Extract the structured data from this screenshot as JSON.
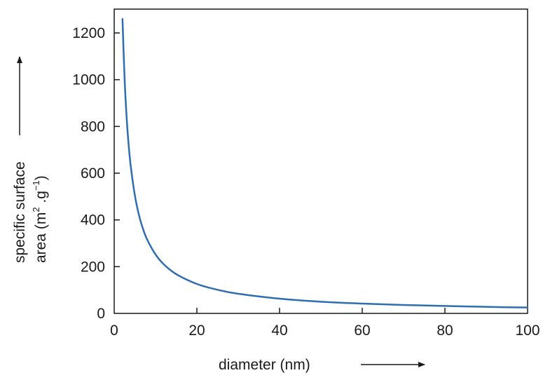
{
  "chart_data": {
    "type": "line",
    "xlabel": "diameter (nm)",
    "ylabel_line1": "specific surface",
    "ylabel_line2_prefix": "area (m",
    "ylabel_sup1": "2",
    "ylabel_mid": " .g",
    "ylabel_sup2": "−1",
    "ylabel_suffix": ")",
    "xlim": [
      0,
      100
    ],
    "ylim": [
      0,
      1300
    ],
    "x_ticks": [
      0,
      20,
      40,
      60,
      80,
      100
    ],
    "y_ticks": [
      0,
      200,
      400,
      600,
      800,
      1000,
      1200
    ],
    "x_tick_labels": [
      "0",
      "20",
      "40",
      "60",
      "80",
      "100"
    ],
    "y_tick_labels": [
      "0",
      "200",
      "400",
      "600",
      "800",
      "1000",
      "1200"
    ],
    "grid": false,
    "line_color": "#2f6db3",
    "series": [
      {
        "x": [
          2,
          2.5,
          3,
          3.5,
          4,
          5,
          6,
          7,
          8,
          10,
          12,
          15,
          20,
          25,
          30,
          40,
          50,
          60,
          70,
          80,
          90,
          100
        ],
        "y": [
          1260,
          1010,
          840,
          720,
          630,
          505,
          420,
          360,
          315,
          252,
          210,
          168,
          126,
          101,
          84,
          63,
          50,
          42,
          36,
          32,
          28,
          25
        ]
      }
    ]
  }
}
